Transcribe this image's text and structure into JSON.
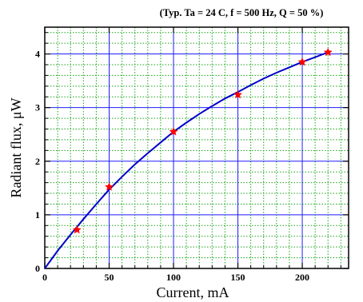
{
  "chart_data": {
    "type": "line",
    "annotation": "(Typ. Ta = 24 C, f = 500 Hz, Q = 50 %)",
    "xlabel": "Current, mA",
    "ylabel": "Radiant flux, μW",
    "xlim": [
      0,
      236
    ],
    "ylim": [
      0,
      4.5
    ],
    "x_ticks": [
      0,
      50,
      100,
      150,
      200
    ],
    "y_ticks": [
      0,
      1,
      2,
      3,
      4
    ],
    "x_tick_labels": [
      "0",
      "50",
      "100",
      "150",
      "200"
    ],
    "y_tick_labels": [
      "0",
      "1",
      "2",
      "3",
      "4"
    ],
    "grid": true,
    "major_grid_color": "#1c1cff",
    "minor_grid_color": "#1aa51a",
    "series": [
      {
        "kind": "measured",
        "marker": "star",
        "color": "#ff0000",
        "x": [
          25,
          50,
          100,
          150,
          200,
          220
        ],
        "y": [
          0.72,
          1.52,
          2.55,
          3.24,
          3.85,
          4.03
        ]
      },
      {
        "kind": "fit",
        "color": "#0000cc",
        "x": [
          0,
          10,
          20,
          30,
          40,
          50,
          60,
          70,
          80,
          90,
          100,
          110,
          120,
          130,
          140,
          150,
          160,
          170,
          180,
          190,
          200,
          210,
          220
        ],
        "y": [
          0,
          0.33,
          0.63,
          0.92,
          1.2,
          1.47,
          1.71,
          1.94,
          2.15,
          2.35,
          2.55,
          2.72,
          2.88,
          3.03,
          3.17,
          3.29,
          3.42,
          3.54,
          3.65,
          3.75,
          3.85,
          3.94,
          4.03
        ]
      }
    ]
  }
}
